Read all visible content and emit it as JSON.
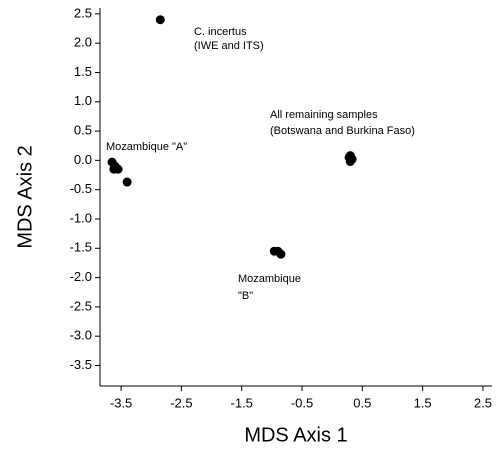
{
  "chart_data": {
    "type": "scatter",
    "x_label": "MDS Axis 1",
    "y_label": "MDS Axis 2",
    "color": "#000000",
    "x": [
      -2.85,
      -3.65,
      -3.6,
      -3.55,
      -3.62,
      -3.4,
      -0.96,
      -0.9,
      -0.85,
      0.28,
      0.33,
      0.3,
      0.3
    ],
    "values": [
      2.4,
      -0.03,
      -0.1,
      -0.15,
      -0.15,
      -0.37,
      -1.55,
      -1.55,
      -1.6,
      0.05,
      0.02,
      -0.02,
      0.08
    ],
    "xlim": [
      -3.85,
      2.65
    ],
    "ylim": [
      -3.85,
      2.6
    ],
    "xticks": [
      -3.5,
      -2.5,
      -1.5,
      -0.5,
      0.5,
      1.5,
      2.5
    ],
    "yticks": [
      2.5,
      {
        "value": 2,
        "label": "2.0"
      },
      1.5,
      {
        "value": 1,
        "label": "1.0"
      },
      0.5,
      {
        "value": 0,
        "label": "0.0"
      },
      -0.5,
      {
        "value": -1,
        "label": "-1.0"
      },
      -1.5,
      {
        "value": -2,
        "label": "-2.0"
      },
      -2.5,
      {
        "value": -3,
        "label": "-3.0"
      },
      -3.5
    ],
    "annotations": [
      "C. incertus",
      "(IWE and ITS)",
      "All remaining samples",
      "(Botswana and Burkina Faso)",
      "Mozambique \"A\"",
      "Mozambique",
      "\"B\""
    ]
  }
}
